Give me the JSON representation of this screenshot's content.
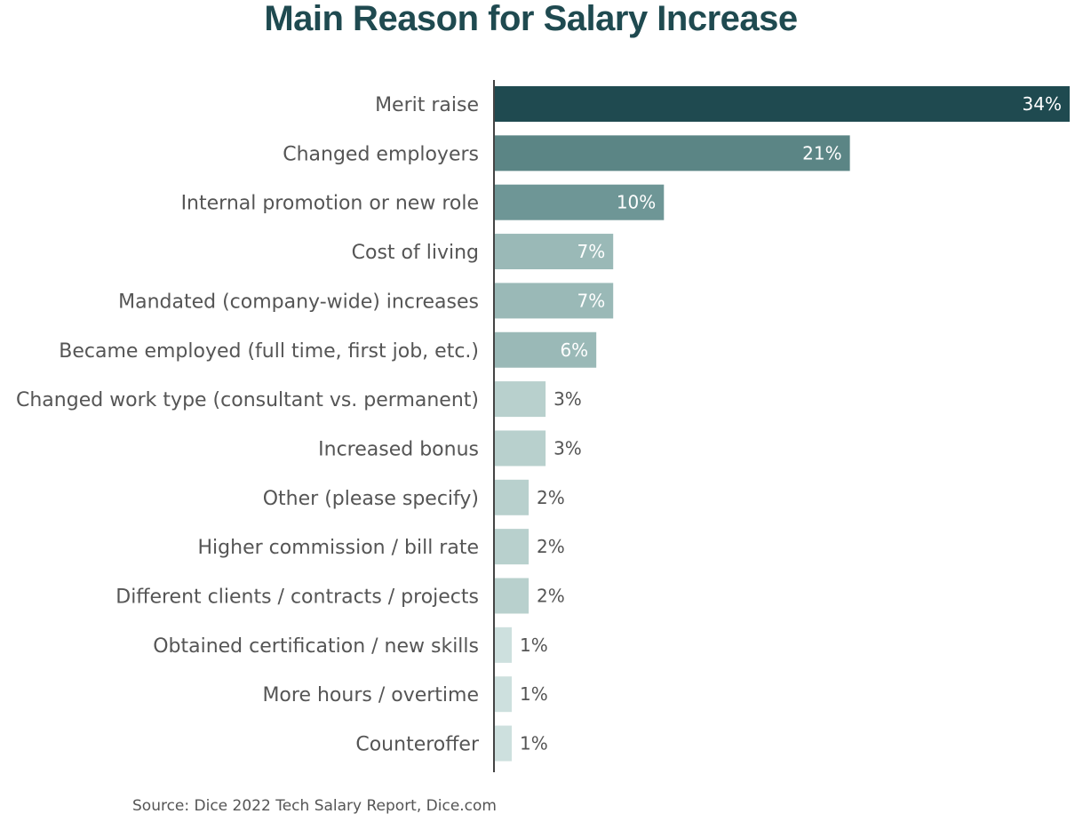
{
  "chart_data": {
    "type": "bar",
    "orientation": "horizontal",
    "title": "Main Reason for Salary Increase",
    "categories": [
      "Merit raise",
      "Changed employers",
      "Internal promotion or new role",
      "Cost of living",
      "Mandated (company-wide) increases",
      "Became employed (full time, first job, etc.)",
      "Changed work type (consultant vs. permanent)",
      "Increased bonus",
      "Other (please specify)",
      "Higher commission / bill rate",
      "Different clients / contracts / projects",
      "Obtained certification / new skills",
      "More hours / overtime",
      "Counteroffer"
    ],
    "values": [
      34,
      21,
      10,
      7,
      7,
      6,
      3,
      3,
      2,
      2,
      2,
      1,
      1,
      1
    ],
    "value_labels": [
      "34%",
      "21%",
      "10%",
      "7%",
      "7%",
      "6%",
      "3%",
      "3%",
      "2%",
      "2%",
      "2%",
      "1%",
      "1%",
      "1%"
    ],
    "bar_colors": [
      "#1f4a50",
      "#5b8585",
      "#6e9696",
      "#9ab9b7",
      "#9ab9b7",
      "#9ab9b7",
      "#b8d0cd",
      "#b8d0cd",
      "#b8d0cd",
      "#b8d0cd",
      "#b8d0cd",
      "#cde0de",
      "#cde0de",
      "#cde0de"
    ],
    "xlim": [
      0,
      34
    ],
    "grid": false,
    "legend": "none"
  },
  "source": "Source: Dice 2022 Tech Salary Report, Dice.com"
}
